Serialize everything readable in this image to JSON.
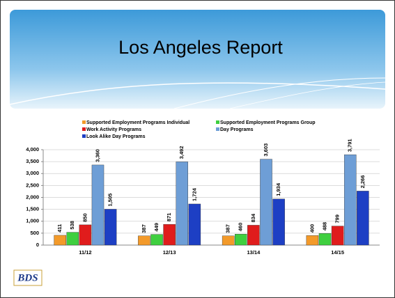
{
  "title_text": "Los Angeles Report",
  "logo": "BDS",
  "chart_data": {
    "type": "bar",
    "categories": [
      "11/12",
      "12/13",
      "13/14",
      "14/15"
    ],
    "series": [
      {
        "name": "Supported Employment Programs Individual",
        "color": "#f39a2a",
        "values": [
          411,
          387,
          387,
          400
        ],
        "value_labels": [
          "411",
          "387",
          "387",
          "400"
        ]
      },
      {
        "name": "Supported Employment Programs Group",
        "color": "#3fcf3f",
        "values": [
          538,
          449,
          460,
          488
        ],
        "value_labels": [
          "538",
          "449",
          "460",
          "488"
        ]
      },
      {
        "name": "Work Activity Programs",
        "color": "#e01c1c",
        "values": [
          850,
          871,
          834,
          799
        ],
        "value_labels": [
          "850",
          "871",
          "834",
          "799"
        ]
      },
      {
        "name": "Day Programs",
        "color": "#6e9ed6",
        "values": [
          3360,
          3492,
          3603,
          3791
        ],
        "value_labels": [
          "3,360",
          "3,492",
          "3,603",
          "3,791"
        ]
      },
      {
        "name": "Look Alike Day Programs",
        "color": "#1d3fc4",
        "values": [
          1505,
          1724,
          1934,
          2266
        ],
        "value_labels": [
          "1,505",
          "1,724",
          "1,934",
          "2,266"
        ]
      }
    ],
    "ylim": [
      0,
      4000
    ],
    "yticks": [
      0,
      500,
      {
        "value": 1000,
        "label": "1,000"
      },
      {
        "value": 1500,
        "label": "1,500"
      },
      {
        "value": 2000,
        "label": "2,000"
      },
      {
        "value": 2500,
        "label": "2,500"
      },
      {
        "value": 3000,
        "label": "3,000"
      },
      {
        "value": 3500,
        "label": "3,500"
      },
      {
        "value": 4000,
        "label": "4,000"
      }
    ],
    "grid": true,
    "legend": "top"
  }
}
